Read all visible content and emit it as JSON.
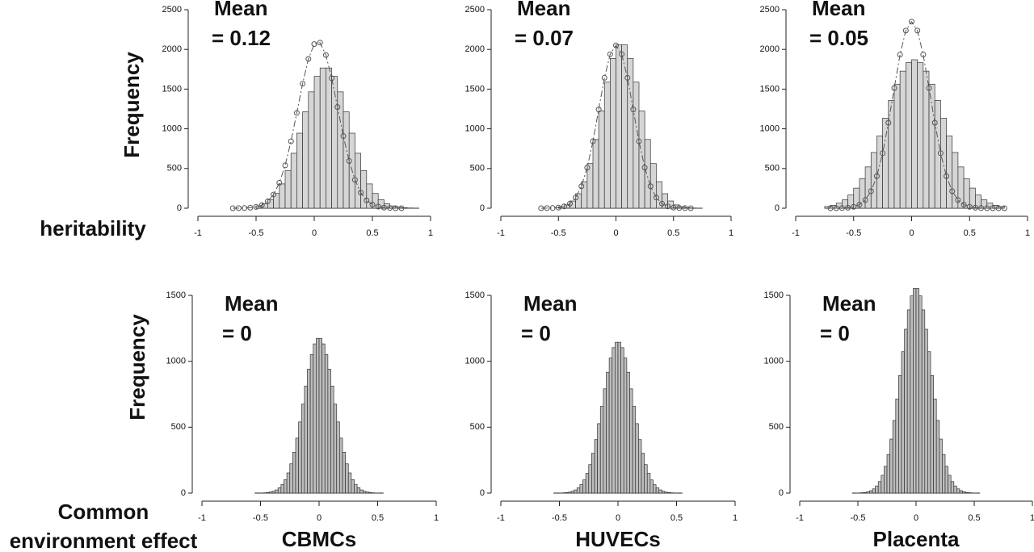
{
  "chart_data": [
    {
      "type": "histogram",
      "annotation": [
        "Mean",
        "= 0.12"
      ],
      "ylabel": "Frequency",
      "row_label": [
        "heritability"
      ],
      "bins": [
        -0.5,
        -0.45,
        -0.4,
        -0.35,
        -0.3,
        -0.25,
        -0.2,
        -0.15,
        -0.1,
        -0.05,
        0,
        0.05,
        0.1,
        0.15,
        0.2,
        0.25,
        0.3,
        0.35,
        0.4,
        0.45,
        0.5,
        0.55,
        0.6,
        0.65,
        0.7,
        0.75,
        0.8,
        0.85,
        0.9
      ],
      "values": [
        29,
        56,
        106,
        186,
        306,
        475,
        692,
        945,
        1214,
        1465,
        1660,
        1766,
        1766,
        1660,
        1465,
        1214,
        945,
        692,
        475,
        306,
        186,
        106,
        56,
        29,
        14,
        6,
        3,
        1
      ],
      "color": "#d6d6d6",
      "curve": {
        "x": [
          -0.7,
          -0.65,
          -0.6,
          -0.55,
          -0.5,
          -0.45,
          -0.4,
          -0.35,
          -0.3,
          -0.25,
          -0.2,
          -0.15,
          -0.1,
          -0.05,
          0,
          0.05,
          0.1,
          0.15,
          0.2,
          0.25,
          0.3,
          0.35,
          0.4,
          0.45,
          0.5,
          0.55,
          0.6,
          0.65,
          0.7,
          0.75
        ],
        "values": [
          0,
          1,
          2,
          6,
          16,
          39,
          86,
          172,
          320,
          540,
          842,
          1200,
          1568,
          1880,
          2067,
          2085,
          1929,
          1637,
          1274,
          909,
          596,
          357,
          196,
          99,
          46,
          20,
          8,
          3,
          0,
          0
        ],
        "color": "#555555"
      },
      "xlim": [
        -1,
        1
      ],
      "xticks": [
        -1,
        -0.5,
        0,
        0.5,
        1
      ],
      "ylim": [
        0,
        2500
      ],
      "yticks": [
        0,
        500,
        1000,
        1500,
        2000,
        2500
      ]
    },
    {
      "type": "histogram",
      "annotation": [
        "Mean",
        "= 0.07"
      ],
      "bins": [
        -0.5,
        -0.45,
        -0.4,
        -0.35,
        -0.3,
        -0.25,
        -0.2,
        -0.15,
        -0.1,
        -0.05,
        0,
        0.05,
        0.1,
        0.15,
        0.2,
        0.25,
        0.3,
        0.35,
        0.4,
        0.45,
        0.5,
        0.55,
        0.6,
        0.65,
        0.7,
        0.75
      ],
      "values": [
        18,
        42,
        91,
        183,
        334,
        562,
        866,
        1225,
        1588,
        1887,
        2057,
        2057,
        1887,
        1588,
        1225,
        866,
        562,
        334,
        183,
        91,
        42,
        18,
        7,
        3,
        1
      ],
      "color": "#d6d6d6",
      "curve": {
        "x": [
          -0.65,
          -0.6,
          -0.55,
          -0.5,
          -0.45,
          -0.4,
          -0.35,
          -0.3,
          -0.25,
          -0.2,
          -0.15,
          -0.1,
          -0.05,
          0,
          0.05,
          0.1,
          0.15,
          0.2,
          0.25,
          0.3,
          0.35,
          0.4,
          0.45,
          0.5,
          0.55,
          0.6,
          0.65
        ],
        "values": [
          0,
          1,
          2,
          8,
          23,
          58,
          135,
          277,
          511,
          843,
          1244,
          1642,
          1939,
          2050,
          1939,
          1642,
          1244,
          843,
          511,
          277,
          135,
          58,
          23,
          8,
          2,
          1,
          0
        ],
        "color": "#555555"
      },
      "xlim": [
        -1,
        1
      ],
      "xticks": [
        -1,
        -0.5,
        0,
        0.5,
        1
      ],
      "ylim": [
        0,
        2500
      ],
      "yticks": [
        0,
        500,
        1000,
        1500,
        2000,
        2500
      ]
    },
    {
      "type": "histogram",
      "annotation": [
        "Mean",
        "= 0.05"
      ],
      "bins": [
        -0.75,
        -0.7,
        -0.65,
        -0.6,
        -0.55,
        -0.5,
        -0.45,
        -0.4,
        -0.35,
        -0.3,
        -0.25,
        -0.2,
        -0.15,
        -0.1,
        -0.05,
        0,
        0.05,
        0.1,
        0.15,
        0.2,
        0.25,
        0.3,
        0.35,
        0.4,
        0.45,
        0.5,
        0.55,
        0.6,
        0.65,
        0.7,
        0.75,
        0.8
      ],
      "values": [
        21,
        37,
        64,
        105,
        166,
        253,
        370,
        520,
        702,
        910,
        1134,
        1358,
        1562,
        1726,
        1833,
        1870,
        1833,
        1726,
        1562,
        1358,
        1134,
        910,
        702,
        520,
        370,
        253,
        166,
        105,
        64,
        37,
        21
      ],
      "color": "#d6d6d6",
      "curve": {
        "x": [
          -0.7,
          -0.65,
          -0.6,
          -0.55,
          -0.5,
          -0.45,
          -0.4,
          -0.35,
          -0.3,
          -0.25,
          -0.2,
          -0.15,
          -0.1,
          -0.05,
          0,
          0.05,
          0.1,
          0.15,
          0.2,
          0.25,
          0.3,
          0.35,
          0.4,
          0.45,
          0.5,
          0.55,
          0.6,
          0.65,
          0.7,
          0.75,
          0.8
        ],
        "values": [
          0,
          0,
          2,
          6,
          18,
          45,
          103,
          215,
          404,
          693,
          1076,
          1513,
          1934,
          2237,
          2350,
          2237,
          1934,
          1513,
          1076,
          693,
          404,
          215,
          103,
          45,
          18,
          6,
          2,
          0,
          0,
          0,
          0
        ],
        "color": "#555555"
      },
      "xlim": [
        -1,
        1
      ],
      "xticks": [
        -1,
        -0.5,
        0,
        0.5,
        1
      ],
      "ylim": [
        0,
        2500
      ],
      "yticks": [
        0,
        500,
        1000,
        1500,
        2000,
        2500
      ]
    },
    {
      "type": "histogram",
      "annotation": [
        "Mean",
        "= 0"
      ],
      "ylabel": "Frequency",
      "row_label": [
        "Common",
        "environment effect"
      ],
      "xlabel": "CBMCs",
      "bins": [
        -0.55,
        -0.525,
        -0.5,
        -0.475,
        -0.45,
        -0.425,
        -0.4,
        -0.375,
        -0.35,
        -0.325,
        -0.3,
        -0.275,
        -0.25,
        -0.225,
        -0.2,
        -0.175,
        -0.15,
        -0.125,
        -0.1,
        -0.075,
        -0.05,
        -0.025,
        0,
        0.025,
        0.05,
        0.075,
        0.1,
        0.125,
        0.15,
        0.175,
        0.2,
        0.225,
        0.25,
        0.275,
        0.3,
        0.325,
        0.35,
        0.375,
        0.4,
        0.425,
        0.45,
        0.475,
        0.5,
        0.525,
        0.55
      ],
      "values": [
        0,
        0,
        1,
        2,
        4,
        8,
        14,
        24,
        41,
        66,
        102,
        153,
        222,
        310,
        417,
        540,
        675,
        812,
        940,
        1051,
        1132,
        1174,
        1174,
        1132,
        1051,
        940,
        812,
        675,
        540,
        417,
        310,
        222,
        153,
        102,
        66,
        41,
        24,
        14,
        8,
        4,
        2,
        1,
        0,
        0
      ],
      "color": "#bdbdbd",
      "xlim": [
        -1,
        1
      ],
      "xticks": [
        -1,
        -0.5,
        0,
        0.5,
        1
      ],
      "ylim": [
        0,
        1500
      ],
      "yticks": [
        0,
        500,
        1000,
        1500
      ]
    },
    {
      "type": "histogram",
      "annotation": [
        "Mean",
        "= 0"
      ],
      "xlabel": "HUVECs",
      "bins": [
        -0.55,
        -0.525,
        -0.5,
        -0.475,
        -0.45,
        -0.425,
        -0.4,
        -0.375,
        -0.35,
        -0.325,
        -0.3,
        -0.275,
        -0.25,
        -0.225,
        -0.2,
        -0.175,
        -0.15,
        -0.125,
        -0.1,
        -0.075,
        -0.05,
        -0.025,
        0,
        0.025,
        0.05,
        0.075,
        0.1,
        0.125,
        0.15,
        0.175,
        0.2,
        0.225,
        0.25,
        0.275,
        0.3,
        0.325,
        0.35,
        0.375,
        0.4,
        0.425,
        0.45,
        0.475,
        0.5,
        0.525,
        0.55
      ],
      "values": [
        0,
        0,
        1,
        2,
        4,
        7,
        14,
        24,
        40,
        64,
        100,
        150,
        216,
        302,
        406,
        527,
        658,
        791,
        917,
        1025,
        1103,
        1144,
        1144,
        1103,
        1025,
        917,
        791,
        658,
        527,
        406,
        302,
        216,
        150,
        100,
        64,
        40,
        24,
        14,
        7,
        4,
        2,
        1,
        0,
        0
      ],
      "color": "#bdbdbd",
      "xlim": [
        -1,
        1
      ],
      "xticks": [
        -1,
        -0.5,
        0,
        0.5,
        1
      ],
      "ylim": [
        0,
        1500
      ],
      "yticks": [
        0,
        500,
        1000,
        1500
      ]
    },
    {
      "type": "histogram",
      "annotation": [
        "Mean",
        "= 0"
      ],
      "xlabel": "Placenta",
      "bins": [
        -0.55,
        -0.525,
        -0.5,
        -0.475,
        -0.45,
        -0.425,
        -0.4,
        -0.375,
        -0.35,
        -0.325,
        -0.3,
        -0.275,
        -0.25,
        -0.225,
        -0.2,
        -0.175,
        -0.15,
        -0.125,
        -0.1,
        -0.075,
        -0.05,
        -0.025,
        0,
        0.025,
        0.05,
        0.075,
        0.1,
        0.125,
        0.15,
        0.175,
        0.2,
        0.225,
        0.25,
        0.275,
        0.3,
        0.325,
        0.35,
        0.375,
        0.4,
        0.425,
        0.45,
        0.475,
        0.5,
        0.525,
        0.55
      ],
      "values": [
        0,
        1,
        1,
        3,
        5,
        10,
        18,
        32,
        54,
        87,
        135,
        203,
        293,
        410,
        551,
        714,
        892,
        1073,
        1243,
        1390,
        1496,
        1552,
        1552,
        1496,
        1390,
        1243,
        1073,
        892,
        714,
        551,
        410,
        293,
        203,
        135,
        87,
        54,
        32,
        18,
        10,
        5,
        3,
        1,
        1,
        0
      ],
      "color": "#bdbdbd",
      "xlim": [
        -1,
        1
      ],
      "xticks": [
        -1,
        -0.5,
        0,
        0.5,
        1
      ],
      "ylim": [
        0,
        1500
      ],
      "yticks": [
        0,
        500,
        1000,
        1500
      ]
    }
  ]
}
